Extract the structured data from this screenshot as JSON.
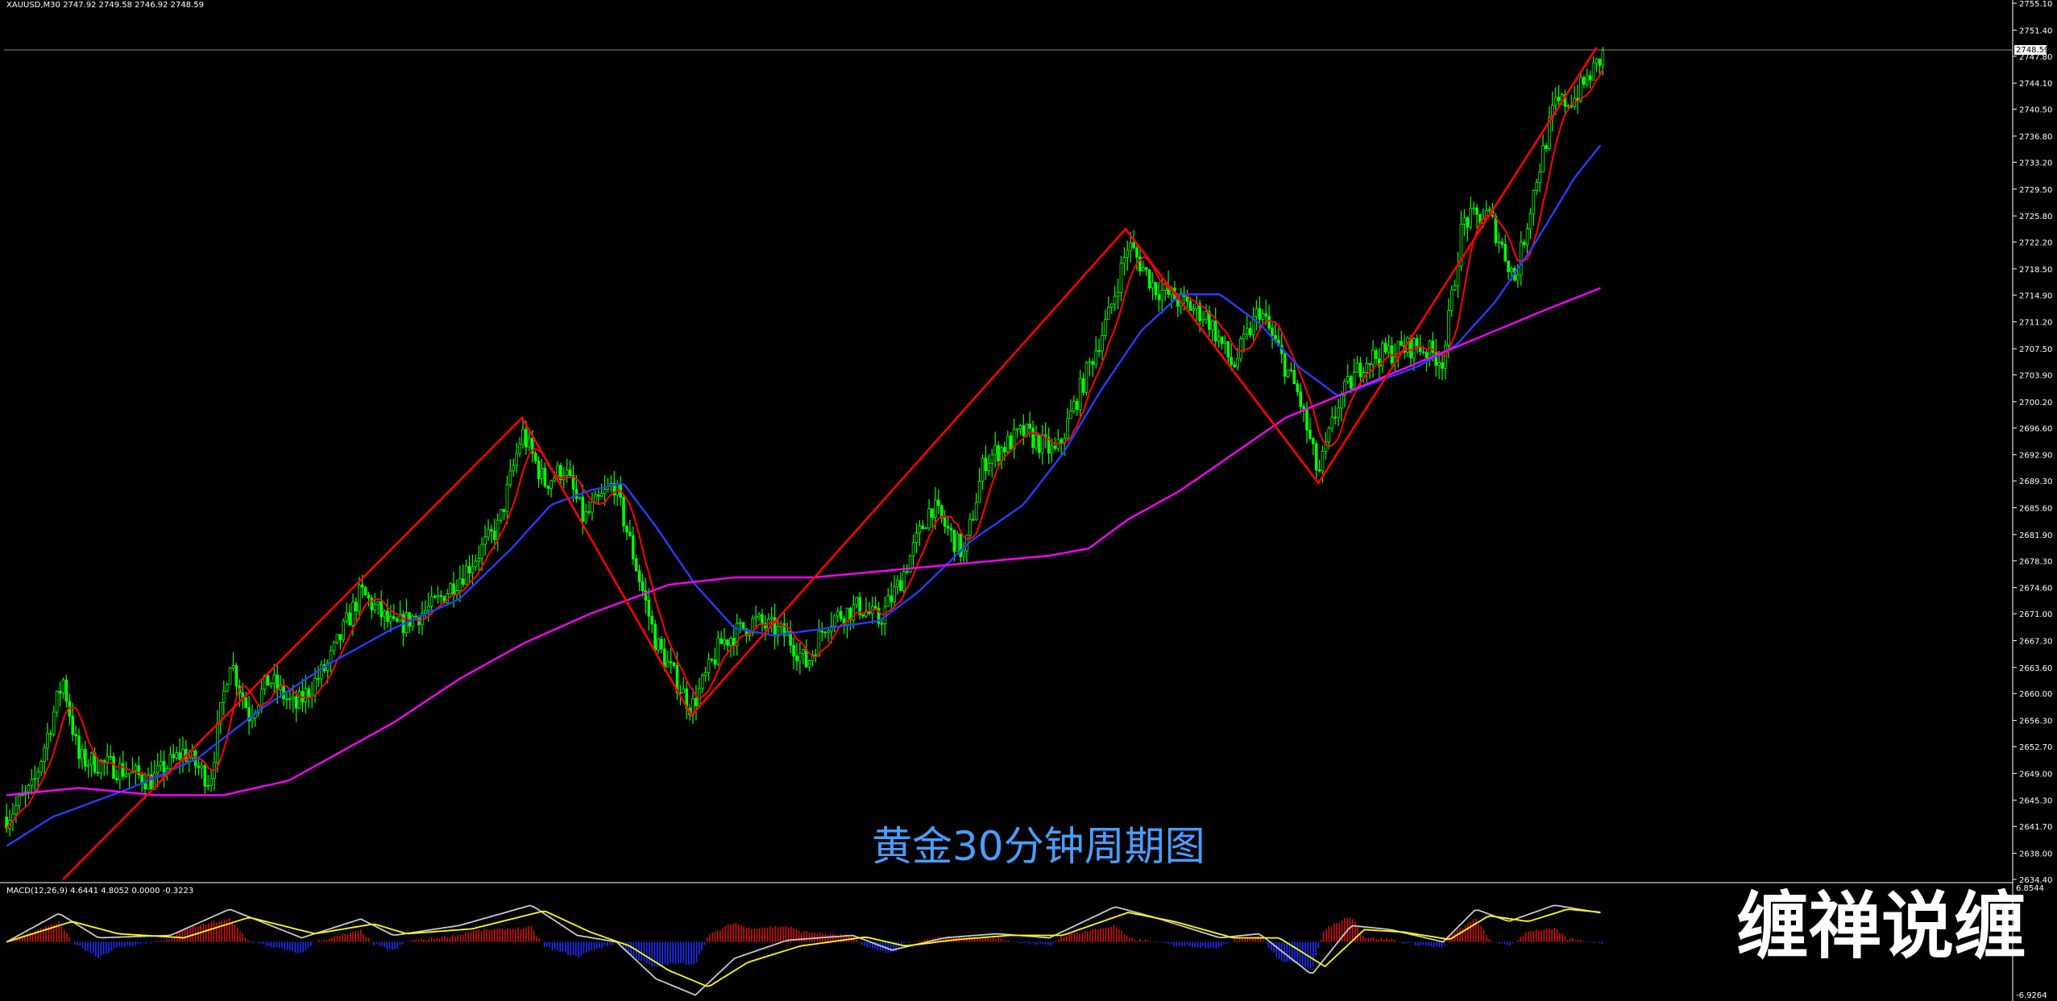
{
  "header": {
    "symbol_line": "XAUUSD,M30  2747.92 2749.58 2746.92 2748.59"
  },
  "indicator": {
    "label": "MACD(12,26,9) 4.6441 4.8052 0.0000 -0.3223",
    "axis_max": "6.8544",
    "axis_min": "-6.9264"
  },
  "caption": "黄金30分钟周期图",
  "watermark": "缠禅说缠",
  "colors": {
    "background": "#000000",
    "candle": "#00ff00",
    "zigzag": "#ff0000",
    "ma_fast": "#ff0000",
    "ma_slow": "#2b3bff",
    "ma_long": "#ff00ff",
    "macd_line": "#c8c8c8",
    "macd_signal": "#ffff00",
    "macd_hist_pos": "#d01010",
    "macd_hist_neg": "#2030ff",
    "caption": "#4a9eff"
  },
  "chart_data": [
    {
      "type": "candlestick",
      "title": "XAUUSD,M30",
      "price_label": "2748.59",
      "ylim": [
        2634.4,
        2755.1
      ],
      "yticks": [
        "2755.10",
        "2751.40",
        "2747.80",
        "2744.10",
        "2740.50",
        "2736.80",
        "2733.20",
        "2729.50",
        "2725.80",
        "2722.20",
        "2718.50",
        "2714.90",
        "2711.20",
        "2707.50",
        "2703.90",
        "2700.20",
        "2696.60",
        "2692.90",
        "2689.30",
        "2685.60",
        "2681.90",
        "2678.30",
        "2674.60",
        "2671.00",
        "2667.30",
        "2663.60",
        "2660.00",
        "2656.30",
        "2652.70",
        "2649.00",
        "2645.30",
        "2641.70",
        "2638.00",
        "2634.40"
      ],
      "price_anchors": [
        [
          0,
          2642
        ],
        [
          25,
          2647
        ],
        [
          48,
          2662
        ],
        [
          60,
          2651
        ],
        [
          85,
          2650
        ],
        [
          115,
          2648
        ],
        [
          140,
          2652
        ],
        [
          160,
          2648
        ],
        [
          175,
          2665
        ],
        [
          190,
          2657
        ],
        [
          205,
          2662
        ],
        [
          225,
          2658
        ],
        [
          250,
          2664
        ],
        [
          275,
          2674
        ],
        [
          300,
          2669
        ],
        [
          330,
          2672
        ],
        [
          355,
          2677
        ],
        [
          380,
          2683
        ],
        [
          398,
          2696
        ],
        [
          415,
          2689
        ],
        [
          430,
          2691
        ],
        [
          445,
          2684
        ],
        [
          468,
          2689
        ],
        [
          480,
          2681
        ],
        [
          500,
          2667
        ],
        [
          527,
          2658
        ],
        [
          550,
          2667
        ],
        [
          575,
          2670
        ],
        [
          600,
          2668
        ],
        [
          615,
          2664
        ],
        [
          630,
          2670
        ],
        [
          655,
          2672
        ],
        [
          670,
          2670
        ],
        [
          685,
          2675
        ],
        [
          710,
          2686
        ],
        [
          735,
          2679
        ],
        [
          750,
          2692
        ],
        [
          780,
          2696
        ],
        [
          805,
          2693
        ],
        [
          830,
          2705
        ],
        [
          845,
          2712
        ],
        [
          860,
          2722
        ],
        [
          880,
          2716
        ],
        [
          900,
          2714
        ],
        [
          920,
          2712
        ],
        [
          940,
          2705
        ],
        [
          960,
          2713
        ],
        [
          975,
          2707
        ],
        [
          990,
          2701
        ],
        [
          1005,
          2690
        ],
        [
          1020,
          2700
        ],
        [
          1040,
          2706
        ],
        [
          1060,
          2707
        ],
        [
          1080,
          2708
        ],
        [
          1100,
          2706
        ],
        [
          1115,
          2725
        ],
        [
          1135,
          2726
        ],
        [
          1155,
          2717
        ],
        [
          1170,
          2730
        ],
        [
          1185,
          2741
        ],
        [
          1200,
          2742
        ],
        [
          1215,
          2746
        ],
        [
          1222,
          2748
        ]
      ],
      "zigzag": [
        [
          48,
          2634.4
        ],
        [
          398,
          2698
        ],
        [
          527,
          2657
        ],
        [
          858,
          2724
        ],
        [
          1005,
          2689
        ],
        [
          1217,
          2749
        ]
      ],
      "ma_slow": [
        [
          5,
          2639
        ],
        [
          40,
          2643
        ],
        [
          100,
          2647
        ],
        [
          150,
          2651
        ],
        [
          200,
          2658
        ],
        [
          250,
          2664
        ],
        [
          300,
          2669
        ],
        [
          350,
          2673
        ],
        [
          390,
          2680
        ],
        [
          420,
          2686
        ],
        [
          450,
          2688
        ],
        [
          475,
          2689
        ],
        [
          500,
          2683
        ],
        [
          530,
          2675
        ],
        [
          560,
          2669
        ],
        [
          590,
          2668
        ],
        [
          630,
          2669
        ],
        [
          670,
          2670
        ],
        [
          700,
          2674
        ],
        [
          740,
          2681
        ],
        [
          780,
          2686
        ],
        [
          810,
          2693
        ],
        [
          840,
          2702
        ],
        [
          870,
          2710
        ],
        [
          900,
          2715
        ],
        [
          930,
          2715
        ],
        [
          960,
          2711
        ],
        [
          990,
          2705
        ],
        [
          1020,
          2701
        ],
        [
          1050,
          2703
        ],
        [
          1080,
          2705
        ],
        [
          1110,
          2708
        ],
        [
          1140,
          2714
        ],
        [
          1170,
          2722
        ],
        [
          1200,
          2731
        ],
        [
          1222,
          2736
        ]
      ],
      "ma_long": [
        [
          5,
          2646
        ],
        [
          60,
          2647
        ],
        [
          120,
          2646
        ],
        [
          170,
          2646
        ],
        [
          220,
          2648
        ],
        [
          260,
          2652
        ],
        [
          300,
          2656
        ],
        [
          350,
          2662
        ],
        [
          400,
          2667
        ],
        [
          450,
          2671
        ],
        [
          480,
          2673
        ],
        [
          510,
          2675
        ],
        [
          560,
          2676
        ],
        [
          620,
          2676
        ],
        [
          680,
          2677
        ],
        [
          740,
          2678
        ],
        [
          800,
          2679
        ],
        [
          830,
          2680
        ],
        [
          860,
          2684
        ],
        [
          900,
          2688
        ],
        [
          940,
          2693
        ],
        [
          980,
          2698
        ],
        [
          1020,
          2701
        ],
        [
          1060,
          2704
        ],
        [
          1100,
          2707
        ],
        [
          1140,
          2710
        ],
        [
          1180,
          2713
        ],
        [
          1222,
          2716
        ]
      ]
    },
    {
      "type": "macd",
      "title": "MACD(12,26,9)",
      "ylim": [
        -6.9264,
        6.8544
      ],
      "macd_anchors": [
        [
          5,
          0
        ],
        [
          45,
          3.5
        ],
        [
          75,
          0.5
        ],
        [
          130,
          0.8
        ],
        [
          175,
          4.0
        ],
        [
          230,
          0.5
        ],
        [
          275,
          2.8
        ],
        [
          300,
          0.8
        ],
        [
          350,
          2.0
        ],
        [
          405,
          4.5
        ],
        [
          440,
          0.8
        ],
        [
          470,
          0
        ],
        [
          500,
          -4.5
        ],
        [
          530,
          -6.5
        ],
        [
          560,
          -2.0
        ],
        [
          600,
          0.2
        ],
        [
          650,
          0.8
        ],
        [
          680,
          -1.0
        ],
        [
          720,
          0.5
        ],
        [
          760,
          1.0
        ],
        [
          800,
          0.5
        ],
        [
          850,
          4.3
        ],
        [
          880,
          3.0
        ],
        [
          930,
          0.5
        ],
        [
          960,
          1.0
        ],
        [
          1000,
          -4.0
        ],
        [
          1030,
          2.0
        ],
        [
          1060,
          1.5
        ],
        [
          1100,
          0
        ],
        [
          1125,
          4.0
        ],
        [
          1150,
          2.5
        ],
        [
          1185,
          4.5
        ],
        [
          1222,
          3.5
        ]
      ],
      "signal_anchors": [
        [
          5,
          0
        ],
        [
          55,
          2.5
        ],
        [
          90,
          1.0
        ],
        [
          140,
          0.5
        ],
        [
          190,
          3.0
        ],
        [
          240,
          1.0
        ],
        [
          285,
          2.2
        ],
        [
          310,
          1.0
        ],
        [
          360,
          1.6
        ],
        [
          415,
          3.8
        ],
        [
          450,
          1.2
        ],
        [
          480,
          -0.5
        ],
        [
          510,
          -3.5
        ],
        [
          540,
          -5.5
        ],
        [
          570,
          -2.5
        ],
        [
          610,
          -0.5
        ],
        [
          660,
          0.6
        ],
        [
          690,
          -0.5
        ],
        [
          730,
          0.3
        ],
        [
          770,
          0.8
        ],
        [
          810,
          0.8
        ],
        [
          860,
          3.6
        ],
        [
          895,
          2.5
        ],
        [
          940,
          0.5
        ],
        [
          975,
          0.5
        ],
        [
          1010,
          -3.0
        ],
        [
          1040,
          1.5
        ],
        [
          1070,
          1.2
        ],
        [
          1105,
          0.3
        ],
        [
          1135,
          3.2
        ],
        [
          1165,
          2.5
        ],
        [
          1195,
          4.0
        ],
        [
          1222,
          3.6
        ]
      ]
    }
  ]
}
